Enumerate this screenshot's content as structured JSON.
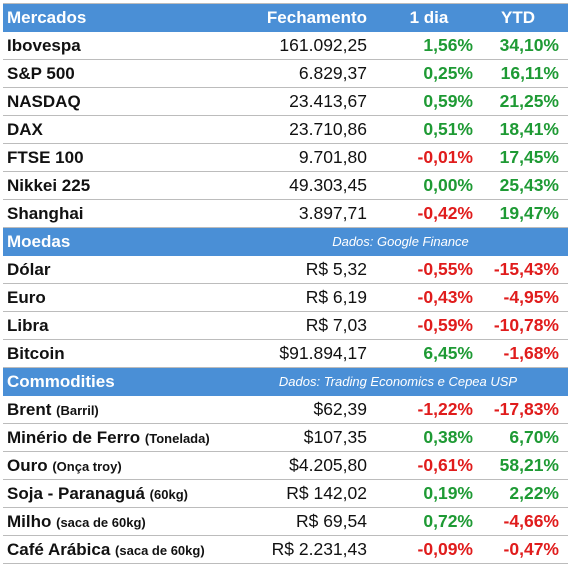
{
  "header": {
    "col_market": "Mercados",
    "col_close": "Fechamento",
    "col_day": "1 dia",
    "col_ytd": "YTD"
  },
  "markets": [
    {
      "name": "Ibovespa",
      "close": "161.092,25",
      "day": "1,56%",
      "day_sign": "pos",
      "ytd": "34,10%",
      "ytd_sign": "pos"
    },
    {
      "name": "S&P 500",
      "close": "6.829,37",
      "day": "0,25%",
      "day_sign": "pos",
      "ytd": "16,11%",
      "ytd_sign": "pos"
    },
    {
      "name": "NASDAQ",
      "close": "23.413,67",
      "day": "0,59%",
      "day_sign": "pos",
      "ytd": "21,25%",
      "ytd_sign": "pos"
    },
    {
      "name": "DAX",
      "close": "23.710,86",
      "day": "0,51%",
      "day_sign": "pos",
      "ytd": "18,41%",
      "ytd_sign": "pos"
    },
    {
      "name": "FTSE 100",
      "close": "9.701,80",
      "day": "-0,01%",
      "day_sign": "neg",
      "ytd": "17,45%",
      "ytd_sign": "pos"
    },
    {
      "name": "Nikkei 225",
      "close": "49.303,45",
      "day": "0,00%",
      "day_sign": "pos",
      "ytd": "25,43%",
      "ytd_sign": "pos"
    },
    {
      "name": "Shanghai",
      "close": "3.897,71",
      "day": "-0,42%",
      "day_sign": "neg",
      "ytd": "19,47%",
      "ytd_sign": "pos"
    }
  ],
  "currencies_section": {
    "title": "Moedas",
    "source": "Dados: Google Finance"
  },
  "currencies": [
    {
      "name": "Dólar",
      "close": "R$ 5,32",
      "day": "-0,55%",
      "day_sign": "neg",
      "ytd": "-15,43%",
      "ytd_sign": "neg"
    },
    {
      "name": "Euro",
      "close": "R$ 6,19",
      "day": "-0,43%",
      "day_sign": "neg",
      "ytd": "-4,95%",
      "ytd_sign": "neg"
    },
    {
      "name": "Libra",
      "close": "R$ 7,03",
      "day": "-0,59%",
      "day_sign": "neg",
      "ytd": "-10,78%",
      "ytd_sign": "neg"
    },
    {
      "name": "Bitcoin",
      "close": "$91.894,17",
      "day": "6,45%",
      "day_sign": "pos",
      "ytd": "-1,68%",
      "ytd_sign": "neg"
    }
  ],
  "commodities_section": {
    "title": "Commodities",
    "source": "Dados: Trading Economics e Cepea USP"
  },
  "commodities": [
    {
      "name": "Brent",
      "unit": "(Barril)",
      "close": "$62,39",
      "day": "-1,22%",
      "day_sign": "neg",
      "ytd": "-17,83%",
      "ytd_sign": "neg"
    },
    {
      "name": "Minério de Ferro",
      "unit": "(Tonelada)",
      "close": "$107,35",
      "day": "0,38%",
      "day_sign": "pos",
      "ytd": "6,70%",
      "ytd_sign": "pos"
    },
    {
      "name": "Ouro",
      "unit": "(Onça troy)",
      "close": "$4.205,80",
      "day": "-0,61%",
      "day_sign": "neg",
      "ytd": "58,21%",
      "ytd_sign": "pos"
    },
    {
      "name": "Soja - Paranaguá",
      "unit": "(60kg)",
      "close": "R$ 142,02",
      "day": "0,19%",
      "day_sign": "pos",
      "ytd": "2,22%",
      "ytd_sign": "pos"
    },
    {
      "name": "Milho",
      "unit": "(saca de 60kg)",
      "close": "R$ 69,54",
      "day": "0,72%",
      "day_sign": "pos",
      "ytd": "-4,66%",
      "ytd_sign": "neg"
    },
    {
      "name": "Café Arábica",
      "unit": "(saca de 60kg)",
      "close": "R$ 2.231,43",
      "day": "-0,09%",
      "day_sign": "neg",
      "ytd": "-0,47%",
      "ytd_sign": "neg"
    }
  ],
  "colors": {
    "header_bg": "#4a8fd6",
    "positive": "#1e9a34",
    "negative": "#e01c1c"
  }
}
